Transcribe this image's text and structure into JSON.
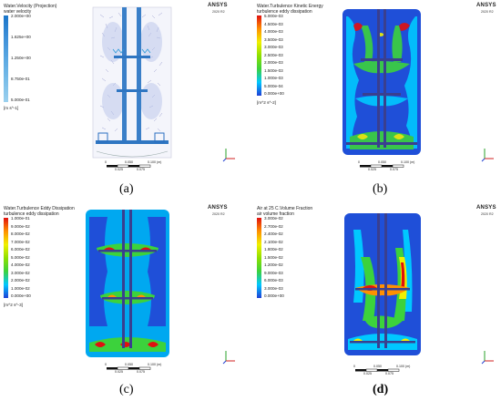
{
  "panels": [
    {
      "id": "a",
      "title": "Water.Velocity (Projection)",
      "subtitle": "water velocity",
      "units": "[m s^-1]",
      "ticks": [
        "2.000e+00",
        "1.625e+00",
        "1.250e+00",
        "8.750e-01",
        "5.000e-01"
      ],
      "caption": "(a)",
      "scale": [
        "0",
        "0.050",
        "0.100 (m)",
        "0.025",
        "0.075"
      ]
    },
    {
      "id": "b",
      "title": "Water.Turbulence Kinetic Energy",
      "subtitle": "turbulence eddy dissipation",
      "units": "[m^2 s^-2]",
      "ticks": [
        "5.000e-03",
        "4.500e-03",
        "4.000e-03",
        "3.500e-03",
        "3.000e-03",
        "2.500e-03",
        "2.000e-03",
        "1.500e-03",
        "1.000e-03",
        "5.000e-04",
        "0.000e+00"
      ],
      "caption": "(b)",
      "scale": [
        "0",
        "0.050",
        "0.100 (m)",
        "0.025",
        "0.075"
      ]
    },
    {
      "id": "c",
      "title": "Water.Turbulence Eddy Dissipation",
      "subtitle": "turbulence eddy dissipation",
      "units": "[m^2 s^-3]",
      "ticks": [
        "1.000e-01",
        "9.000e-02",
        "8.000e-02",
        "7.000e-02",
        "6.000e-02",
        "5.000e-02",
        "4.000e-02",
        "3.000e-02",
        "2.000e-02",
        "1.000e-02",
        "0.000e+00"
      ],
      "caption": "(c)",
      "scale": [
        "0",
        "0.050",
        "0.100 (m)",
        "0.025",
        "0.075"
      ]
    },
    {
      "id": "d",
      "title": "Air at 25 C.Volume Fraction",
      "subtitle": "air volume fraction",
      "units": "",
      "ticks": [
        "3.000e-02",
        "2.700e-02",
        "2.400e-02",
        "2.100e-02",
        "1.800e-02",
        "1.500e-02",
        "1.200e-02",
        "9.000e-03",
        "6.000e-03",
        "3.000e-03",
        "0.000e+00"
      ],
      "caption": "(d)",
      "scale": [
        "0",
        "0.050",
        "0.100 (m)",
        "0.025",
        "0.075"
      ]
    }
  ],
  "brand": {
    "name": "ANSYS",
    "version": "2020 R2"
  },
  "colors": {
    "blue": "#1f3fd6",
    "cyan": "#00c8ff",
    "green": "#3cd23c",
    "yellow": "#f0f000",
    "orange": "#ff9000",
    "red": "#e01010"
  }
}
